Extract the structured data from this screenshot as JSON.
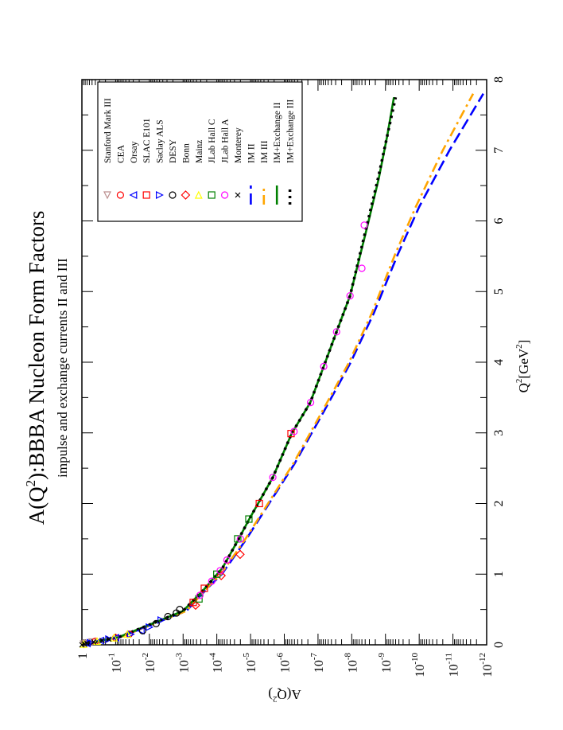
{
  "chart_data": {
    "type": "line",
    "orientation": "rotated-90-ccw",
    "title": "A(Q²):BBBA Nucleon Form Factors",
    "title_parts": {
      "pre": "A(Q",
      "sup": "2",
      "post": "):BBBA Nucleon Form Factors"
    },
    "subtitle": "impulse and exchange currents II and III",
    "xlabel": "Q²[GeV²]",
    "xlabel_parts": {
      "pre": "Q",
      "sup1": "2",
      "mid": "[GeV",
      "sup2": "2",
      "post": "]"
    },
    "ylabel": "A(Q²)",
    "ylabel_parts": {
      "pre": "A(Q",
      "sup": "2",
      "post": ")"
    },
    "xlim": [
      0,
      8
    ],
    "ylim_log10": [
      -12,
      0
    ],
    "yscale": "log",
    "x_ticks": [
      "0",
      "1",
      "2",
      "3",
      "4",
      "5",
      "6",
      "7",
      "8"
    ],
    "y_ticks": [
      {
        "base": "1",
        "exp": ""
      },
      {
        "base": "10",
        "exp": "-1"
      },
      {
        "base": "10",
        "exp": "-2"
      },
      {
        "base": "10",
        "exp": "-3"
      },
      {
        "base": "10",
        "exp": "-4"
      },
      {
        "base": "10",
        "exp": "-5"
      },
      {
        "base": "10",
        "exp": "-6"
      },
      {
        "base": "10",
        "exp": "-7"
      },
      {
        "base": "10",
        "exp": "-8"
      },
      {
        "base": "10",
        "exp": "-9"
      },
      {
        "base": "10",
        "exp": "-10"
      },
      {
        "base": "10",
        "exp": "-11"
      },
      {
        "base": "10",
        "exp": "-12"
      }
    ],
    "legend_position": "top-left",
    "data_sets": [
      {
        "name": "Stanford Mark III",
        "marker": "triangle-down",
        "color": "#bc8f8f",
        "points": [
          [
            0.01,
            -0.05
          ],
          [
            0.02,
            -0.12
          ],
          [
            0.04,
            -0.3
          ]
        ]
      },
      {
        "name": "CEA",
        "marker": "circle",
        "color": "#ff0000",
        "points": [
          [
            0.05,
            -0.4
          ],
          [
            0.1,
            -1.0
          ],
          [
            0.15,
            -1.4
          ]
        ]
      },
      {
        "name": "Orsay",
        "marker": "triangle-left",
        "color": "#0000ff",
        "points": [
          [
            0.02,
            -0.15
          ],
          [
            0.06,
            -0.55
          ],
          [
            0.1,
            -1.0
          ],
          [
            0.2,
            -1.75
          ]
        ]
      },
      {
        "name": "SLAC E101",
        "marker": "square",
        "color": "#ff0000",
        "points": [
          [
            0.6,
            -3.3
          ],
          [
            0.8,
            -3.63
          ],
          [
            2.0,
            -5.26
          ],
          [
            2.99,
            -6.2
          ]
        ]
      },
      {
        "name": "Saclay ALS",
        "marker": "triangle-right",
        "color": "#0000ff",
        "points": [
          [
            0.03,
            -0.25
          ],
          [
            0.08,
            -0.8
          ],
          [
            0.15,
            -1.45
          ],
          [
            0.25,
            -2.0
          ],
          [
            0.35,
            -2.35
          ]
        ]
      },
      {
        "name": "DESY",
        "marker": "circle",
        "color": "#000000",
        "points": [
          [
            0.2,
            -1.8
          ],
          [
            0.3,
            -2.2
          ],
          [
            0.4,
            -2.55
          ],
          [
            0.45,
            -2.8
          ],
          [
            0.5,
            -2.9
          ]
        ]
      },
      {
        "name": "Bonn",
        "marker": "diamond",
        "color": "#ff0000",
        "points": [
          [
            0.56,
            -3.37
          ],
          [
            0.98,
            -4.13
          ],
          [
            1.28,
            -4.69
          ]
        ]
      },
      {
        "name": "Mainz",
        "marker": "triangle-up",
        "color": "#ffff00",
        "points": [
          [
            0.01,
            -0.05
          ],
          [
            0.05,
            -0.45
          ],
          [
            0.1,
            -0.95
          ],
          [
            0.15,
            -1.35
          ]
        ]
      },
      {
        "name": "JLab Hall C",
        "marker": "square",
        "color": "#008000",
        "points": [
          [
            0.65,
            -3.47
          ],
          [
            1.0,
            -4.0
          ],
          [
            1.5,
            -4.62
          ],
          [
            1.78,
            -4.95
          ]
        ]
      },
      {
        "name": "JLab Hall A",
        "marker": "circle",
        "color": "#ff00ff",
        "points": [
          [
            0.7,
            -3.5
          ],
          [
            0.9,
            -3.85
          ],
          [
            1.05,
            -4.1
          ],
          [
            1.2,
            -4.3
          ],
          [
            1.5,
            -4.7
          ],
          [
            2.37,
            -5.66
          ],
          [
            3.02,
            -6.29
          ],
          [
            3.43,
            -6.78
          ],
          [
            3.94,
            -7.17
          ],
          [
            4.43,
            -7.55
          ],
          [
            4.94,
            -7.95
          ],
          [
            5.33,
            -8.3
          ],
          [
            5.94,
            -8.37
          ]
        ]
      },
      {
        "name": "Monterey",
        "marker": "cross",
        "color": "#000000",
        "points": [
          [
            0.0,
            0.0
          ],
          [
            0.01,
            -0.08
          ],
          [
            0.02,
            -0.15
          ],
          [
            0.04,
            -0.35
          ],
          [
            0.06,
            -0.6
          ],
          [
            0.08,
            -0.8
          ]
        ]
      }
    ],
    "series": [
      {
        "name": "IM II",
        "style": "dashed",
        "color": "#0000ff",
        "points": [
          [
            0,
            0
          ],
          [
            0.11,
            -1.15
          ],
          [
            0.34,
            -2.35
          ],
          [
            0.48,
            -3.1
          ],
          [
            0.79,
            -3.7
          ],
          [
            1.0,
            -4.15
          ],
          [
            1.5,
            -4.88
          ],
          [
            2.03,
            -5.59
          ],
          [
            2.56,
            -6.3
          ],
          [
            3.3,
            -7.17
          ],
          [
            3.98,
            -7.95
          ],
          [
            4.7,
            -8.66
          ],
          [
            5.52,
            -9.36
          ],
          [
            6.2,
            -10.0
          ],
          [
            7.0,
            -10.9
          ],
          [
            7.8,
            -11.9
          ]
        ]
      },
      {
        "name": "IM III",
        "style": "dash-dot",
        "color": "#ffa500",
        "points": [
          [
            0,
            0
          ],
          [
            0.11,
            -1.15
          ],
          [
            0.34,
            -2.35
          ],
          [
            0.48,
            -3.1
          ],
          [
            0.79,
            -3.68
          ],
          [
            1.0,
            -4.12
          ],
          [
            1.5,
            -4.85
          ],
          [
            2.03,
            -5.56
          ],
          [
            2.56,
            -6.26
          ],
          [
            3.3,
            -7.12
          ],
          [
            3.98,
            -7.9
          ],
          [
            4.7,
            -8.6
          ],
          [
            5.52,
            -9.28
          ],
          [
            6.2,
            -9.9
          ],
          [
            7.0,
            -10.7
          ],
          [
            7.8,
            -11.6
          ]
        ]
      },
      {
        "name": "IM+Exchange II",
        "style": "solid",
        "color": "#008000",
        "points": [
          [
            0,
            0
          ],
          [
            0.11,
            -1.1
          ],
          [
            0.34,
            -2.29
          ],
          [
            0.48,
            -3.0
          ],
          [
            0.79,
            -3.63
          ],
          [
            1.09,
            -4.17
          ],
          [
            1.5,
            -4.65
          ],
          [
            1.77,
            -4.95
          ],
          [
            2.37,
            -5.66
          ],
          [
            2.99,
            -6.22
          ],
          [
            3.43,
            -6.77
          ],
          [
            3.94,
            -7.17
          ],
          [
            4.43,
            -7.55
          ],
          [
            4.94,
            -7.95
          ],
          [
            5.94,
            -8.47
          ],
          [
            6.6,
            -8.8
          ],
          [
            7.2,
            -9.05
          ],
          [
            7.75,
            -9.25
          ]
        ]
      },
      {
        "name": "IM+Exchange III",
        "style": "dotted",
        "color": "#000000",
        "points": [
          [
            0,
            0
          ],
          [
            0.11,
            -1.1
          ],
          [
            0.34,
            -2.29
          ],
          [
            0.48,
            -3.0
          ],
          [
            0.79,
            -3.63
          ],
          [
            1.09,
            -4.17
          ],
          [
            1.5,
            -4.65
          ],
          [
            1.77,
            -4.95
          ],
          [
            2.37,
            -5.66
          ],
          [
            2.99,
            -6.22
          ],
          [
            3.43,
            -6.77
          ],
          [
            3.94,
            -7.17
          ],
          [
            4.43,
            -7.55
          ],
          [
            4.94,
            -7.95
          ],
          [
            5.94,
            -8.45
          ],
          [
            6.6,
            -8.78
          ],
          [
            7.2,
            -9.05
          ],
          [
            7.75,
            -9.3
          ]
        ]
      }
    ]
  }
}
